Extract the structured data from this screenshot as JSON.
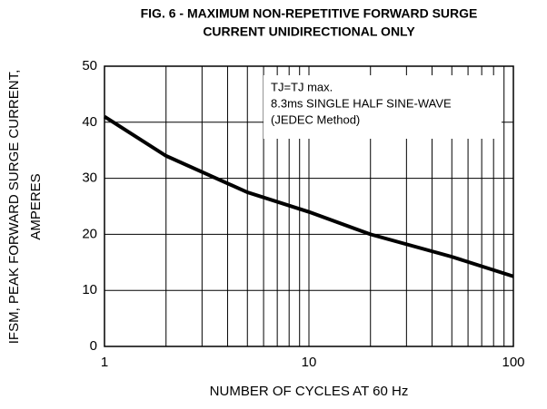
{
  "chart_data": {
    "type": "line",
    "title": [
      "FIG. 6 - MAXIMUM NON-REPETITIVE FORWARD SURGE",
      "CURRENT UNIDIRECTIONAL ONLY"
    ],
    "x_label": "NUMBER OF CYCLES AT 60 Hz",
    "y_label": [
      "IFSM, PEAK FORWARD SURGE CURRENT,",
      "AMPERES"
    ],
    "annotation": [
      "TJ=TJ max.",
      "8.3ms SINGLE HALF SINE-WAVE",
      "(JEDEC Method)"
    ],
    "x": [
      1,
      2,
      5,
      10,
      20,
      50,
      100
    ],
    "series": [
      {
        "color": "#000000",
        "values": [
          41,
          34,
          27.5,
          24,
          20,
          16,
          12.5
        ]
      }
    ],
    "xlim": [
      1,
      100
    ],
    "xticks": [
      1,
      10,
      100
    ],
    "xscale": "log",
    "ylim": [
      0,
      50
    ],
    "yticks": [
      0,
      10,
      20,
      30,
      40,
      50
    ],
    "grid": true
  }
}
